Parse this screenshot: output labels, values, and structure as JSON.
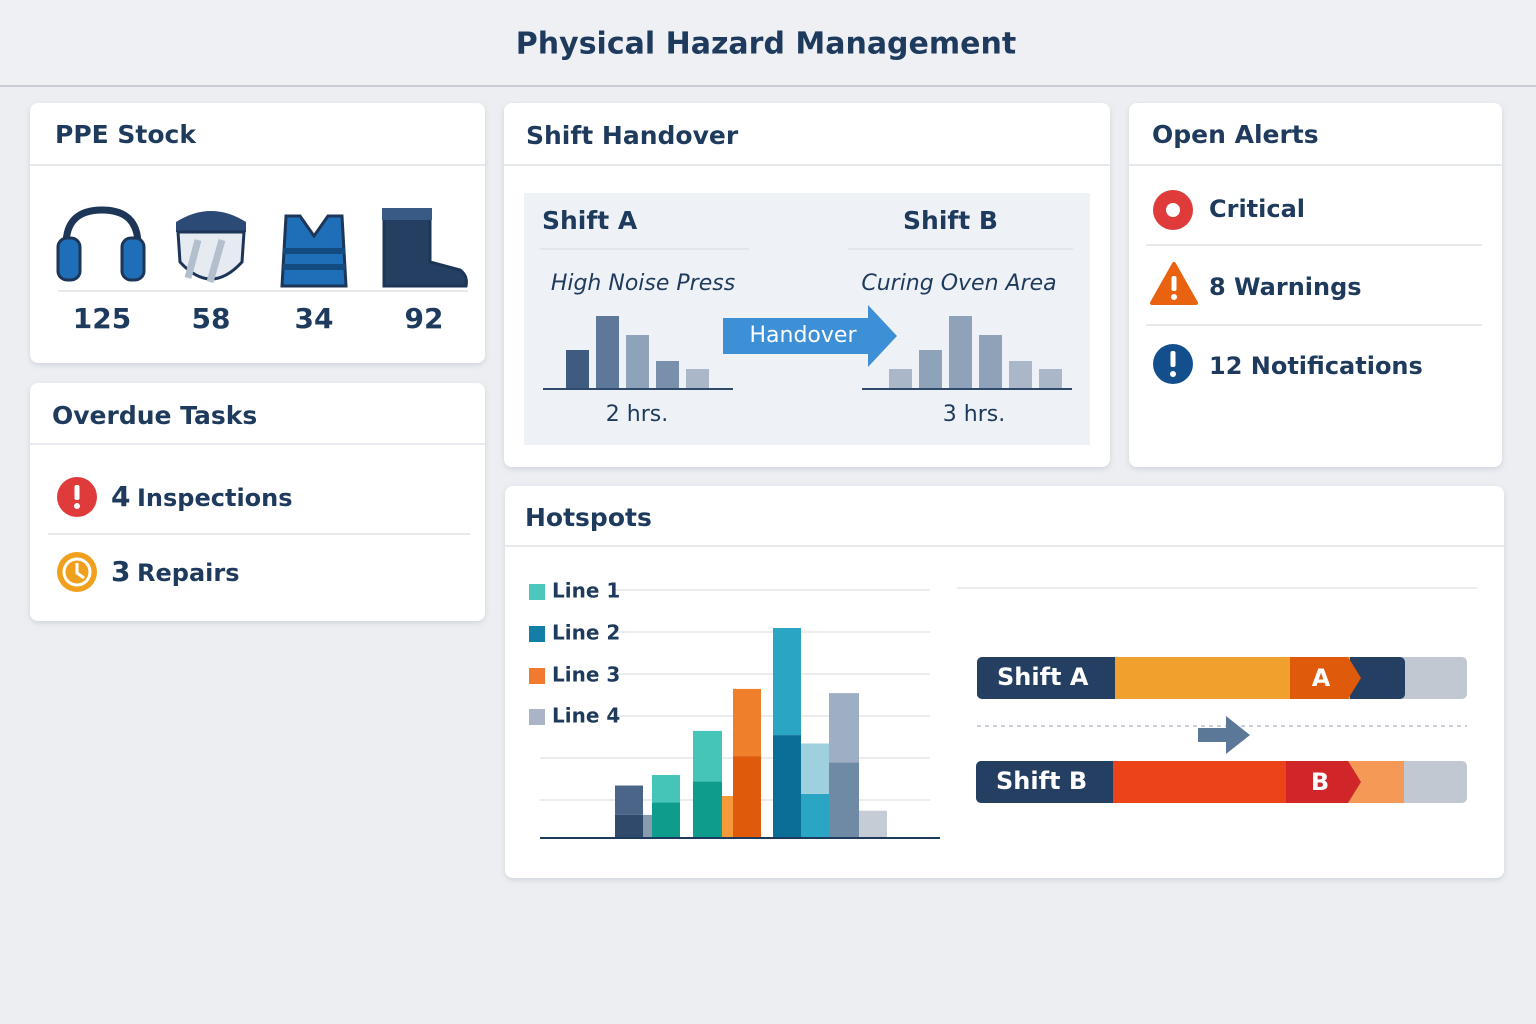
{
  "header": {
    "title": "Physical Hazard Management"
  },
  "ppe_stock": {
    "title": "PPE Stock",
    "items": [
      125,
      58,
      34,
      92
    ]
  },
  "overdue_tasks": {
    "title": "Overdue Tasks",
    "items": [
      {
        "count": 4,
        "label": "Inspections"
      },
      {
        "count": 3,
        "label": "Repairs"
      }
    ]
  },
  "shift_handover": {
    "title": "Shift Handover",
    "action": "Handover",
    "ylim": [
      0,
      80
    ],
    "from": {
      "name": "Shift A",
      "area": "High Noise Press",
      "duration": "2 hrs.",
      "bars": [
        38,
        72,
        53,
        27,
        19
      ],
      "colors": [
        "#3f5b80",
        "#5d7899",
        "#8ea2ba",
        "#7990ad",
        "#a9b7c9"
      ]
    },
    "to": {
      "name": "Shift B",
      "area": "Curing Oven Area",
      "duration": "3 hrs.",
      "bars": [
        19,
        38,
        72,
        53,
        27,
        19
      ],
      "colors": [
        "#a9b7c9",
        "#8ea2ba",
        "#8ea2ba",
        "#8ea2ba",
        "#a9b7c9",
        "#a9b7c9"
      ]
    }
  },
  "open_alerts": {
    "title": "Open Alerts",
    "items": [
      "Critical",
      "8 Warnings",
      "12 Notifications"
    ]
  },
  "hotspots": {
    "title": "Hotspots",
    "legend": [
      "Line 1",
      "Line 2",
      "Line 3",
      "Line 4"
    ],
    "legend_colors": [
      "#4cc7bd",
      "#137ea6",
      "#f07b2e",
      "#a9b5c6"
    ],
    "ylim": [
      0,
      6
    ],
    "bars": [
      {
        "colors": [
          "#2f4a6a",
          "#4a6587"
        ],
        "values": [
          0.55,
          0.7
        ]
      },
      {
        "colors": [
          "#8a9bb0"
        ],
        "values": [
          0.55
        ]
      },
      {
        "colors": [
          "#0e9c8c",
          "#45c4b8"
        ],
        "values": [
          0.85,
          0.65
        ]
      },
      {
        "colors": [
          "#0e9c8c",
          "#45c4b8"
        ],
        "values": [
          1.35,
          1.2
        ]
      },
      {
        "colors": [
          "#f59a3a"
        ],
        "values": [
          1
        ]
      },
      {
        "colors": [
          "#e05a0c",
          "#f07f2c"
        ],
        "values": [
          1.95,
          1.6
        ]
      },
      {
        "colors": [
          "#0b6e96",
          "#2aa6c4"
        ],
        "values": [
          2.45,
          2.55
        ]
      },
      {
        "colors": [
          "#2aa6c4",
          "#9ed0de"
        ],
        "values": [
          1.05,
          1.2
        ]
      },
      {
        "colors": [
          "#6e8aa4",
          "#9eafc4"
        ],
        "values": [
          1.8,
          1.65
        ]
      },
      {
        "colors": [
          "#c5ccd6"
        ],
        "values": [
          0.65
        ]
      }
    ],
    "timeline": {
      "labels": [
        "Shift A",
        "Shift B"
      ],
      "markers": [
        "A",
        "B"
      ]
    }
  }
}
